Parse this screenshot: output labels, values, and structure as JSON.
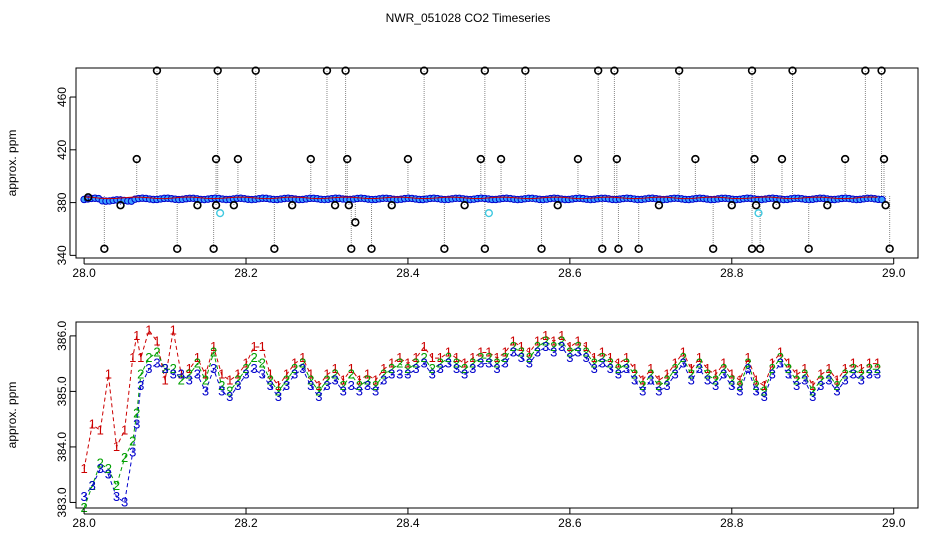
{
  "figure": {
    "title": "NWR_051028  CO2 Timeseries"
  },
  "chart_data": [
    {
      "type": "scatter",
      "ylabel": "approx. ppm",
      "xlim": [
        27.99,
        29.03
      ],
      "ylim": [
        338,
        482
      ],
      "xticks": [
        28.0,
        28.2,
        28.4,
        28.6,
        28.8,
        29.0
      ],
      "xtick_labels": [
        "28.0",
        "28.2",
        "28.4",
        "28.6",
        "28.8",
        "29.0"
      ],
      "yticks": [
        340,
        380,
        420,
        460
      ],
      "ytick_labels": [
        "340",
        "380",
        "420",
        "460"
      ],
      "grid": false,
      "baseline_ppm": 385,
      "low_points_ppm": 372,
      "series_colors": {
        "cluster": "#0000cc",
        "cluster_fill": "#3aa0ff",
        "line": "#cc0000",
        "outlier": "#000000",
        "low": "#40c8e0"
      },
      "outlier_points": [
        {
          "x": 28.005,
          "y": 384
        },
        {
          "x": 28.025,
          "y": 345
        },
        {
          "x": 28.045,
          "y": 378
        },
        {
          "x": 28.065,
          "y": 413
        },
        {
          "x": 28.09,
          "y": 480
        },
        {
          "x": 28.115,
          "y": 345
        },
        {
          "x": 28.14,
          "y": 378
        },
        {
          "x": 28.16,
          "y": 345
        },
        {
          "x": 28.163,
          "y": 378
        },
        {
          "x": 28.163,
          "y": 413
        },
        {
          "x": 28.165,
          "y": 480
        },
        {
          "x": 28.185,
          "y": 378
        },
        {
          "x": 28.19,
          "y": 413
        },
        {
          "x": 28.212,
          "y": 480
        },
        {
          "x": 28.235,
          "y": 345
        },
        {
          "x": 28.257,
          "y": 378
        },
        {
          "x": 28.28,
          "y": 413
        },
        {
          "x": 28.3,
          "y": 480
        },
        {
          "x": 28.31,
          "y": 378
        },
        {
          "x": 28.323,
          "y": 480
        },
        {
          "x": 28.325,
          "y": 413
        },
        {
          "x": 28.327,
          "y": 378
        },
        {
          "x": 28.33,
          "y": 345
        },
        {
          "x": 28.335,
          "y": 365
        },
        {
          "x": 28.355,
          "y": 345
        },
        {
          "x": 28.38,
          "y": 378
        },
        {
          "x": 28.4,
          "y": 413
        },
        {
          "x": 28.42,
          "y": 480
        },
        {
          "x": 28.445,
          "y": 345
        },
        {
          "x": 28.47,
          "y": 378
        },
        {
          "x": 28.49,
          "y": 413
        },
        {
          "x": 28.495,
          "y": 480
        },
        {
          "x": 28.495,
          "y": 345
        },
        {
          "x": 28.515,
          "y": 413
        },
        {
          "x": 28.545,
          "y": 480
        },
        {
          "x": 28.565,
          "y": 345
        },
        {
          "x": 28.585,
          "y": 378
        },
        {
          "x": 28.61,
          "y": 413
        },
        {
          "x": 28.635,
          "y": 480
        },
        {
          "x": 28.64,
          "y": 345
        },
        {
          "x": 28.655,
          "y": 480
        },
        {
          "x": 28.658,
          "y": 413
        },
        {
          "x": 28.66,
          "y": 345
        },
        {
          "x": 28.685,
          "y": 345
        },
        {
          "x": 28.71,
          "y": 378
        },
        {
          "x": 28.735,
          "y": 480
        },
        {
          "x": 28.755,
          "y": 413
        },
        {
          "x": 28.777,
          "y": 345
        },
        {
          "x": 28.8,
          "y": 378
        },
        {
          "x": 28.825,
          "y": 480
        },
        {
          "x": 28.825,
          "y": 345
        },
        {
          "x": 28.828,
          "y": 413
        },
        {
          "x": 28.83,
          "y": 378
        },
        {
          "x": 28.835,
          "y": 345
        },
        {
          "x": 28.855,
          "y": 378
        },
        {
          "x": 28.862,
          "y": 413
        },
        {
          "x": 28.875,
          "y": 480
        },
        {
          "x": 28.895,
          "y": 345
        },
        {
          "x": 28.918,
          "y": 378
        },
        {
          "x": 28.94,
          "y": 413
        },
        {
          "x": 28.965,
          "y": 480
        },
        {
          "x": 28.985,
          "y": 480
        },
        {
          "x": 28.988,
          "y": 413
        },
        {
          "x": 28.99,
          "y": 378
        },
        {
          "x": 28.995,
          "y": 345
        }
      ],
      "low_points": [
        {
          "x": 28.168,
          "y": 372
        },
        {
          "x": 28.5,
          "y": 372
        },
        {
          "x": 28.833,
          "y": 372
        }
      ]
    },
    {
      "type": "line",
      "ylabel": "approx. ppm",
      "xlim": [
        27.99,
        29.03
      ],
      "ylim": [
        382.9,
        386.25
      ],
      "xticks": [
        28.0,
        28.2,
        28.4,
        28.6,
        28.8,
        29.0
      ],
      "xtick_labels": [
        "28.0",
        "28.2",
        "28.4",
        "28.6",
        "28.8",
        "29.0"
      ],
      "yticks": [
        383.0,
        384.0,
        385.0,
        386.0
      ],
      "ytick_labels": [
        "383.0",
        "384.0",
        "385.0",
        "386.0"
      ],
      "grid": false,
      "x": [
        28.0,
        28.01,
        28.02,
        28.03,
        28.04,
        28.05,
        28.06,
        28.065,
        28.07,
        28.08,
        28.09,
        28.1,
        28.11,
        28.12,
        28.13,
        28.14,
        28.15,
        28.16,
        28.17,
        28.18,
        28.19,
        28.2,
        28.21,
        28.22,
        28.23,
        28.24,
        28.25,
        28.26,
        28.27,
        28.28,
        28.29,
        28.3,
        28.31,
        28.32,
        28.33,
        28.34,
        28.35,
        28.36,
        28.37,
        28.38,
        28.39,
        28.4,
        28.41,
        28.42,
        28.43,
        28.44,
        28.45,
        28.46,
        28.47,
        28.48,
        28.49,
        28.5,
        28.51,
        28.52,
        28.53,
        28.54,
        28.55,
        28.56,
        28.57,
        28.58,
        28.59,
        28.6,
        28.61,
        28.62,
        28.63,
        28.64,
        28.65,
        28.66,
        28.67,
        28.68,
        28.69,
        28.7,
        28.71,
        28.72,
        28.73,
        28.74,
        28.75,
        28.76,
        28.77,
        28.78,
        28.79,
        28.8,
        28.81,
        28.82,
        28.83,
        28.84,
        28.85,
        28.86,
        28.87,
        28.88,
        28.89,
        28.9,
        28.91,
        28.92,
        28.93,
        28.94,
        28.95,
        28.96,
        28.97,
        28.98
      ],
      "series": [
        {
          "name": "1",
          "color": "#cc0000",
          "values": [
            383.6,
            384.4,
            384.3,
            385.3,
            384.0,
            384.3,
            385.6,
            386.0,
            385.6,
            386.1,
            385.9,
            385.2,
            386.1,
            385.3,
            385.4,
            385.6,
            385.3,
            385.8,
            385.3,
            385.2,
            385.3,
            385.5,
            385.8,
            385.8,
            385.3,
            385.1,
            385.3,
            385.5,
            385.6,
            385.3,
            385.1,
            385.3,
            385.4,
            385.2,
            385.4,
            385.2,
            385.3,
            385.2,
            385.4,
            385.5,
            385.6,
            385.5,
            385.6,
            385.8,
            385.6,
            385.6,
            385.7,
            385.6,
            385.5,
            385.6,
            385.7,
            385.7,
            385.6,
            385.7,
            385.9,
            385.8,
            385.7,
            385.9,
            386.0,
            385.9,
            386.0,
            385.8,
            385.9,
            385.8,
            385.6,
            385.7,
            385.6,
            385.5,
            385.6,
            385.4,
            385.2,
            385.4,
            385.2,
            385.3,
            385.5,
            385.7,
            385.4,
            385.6,
            385.4,
            385.3,
            385.5,
            385.3,
            385.2,
            385.6,
            385.2,
            385.1,
            385.5,
            385.7,
            385.5,
            385.3,
            385.4,
            385.1,
            385.3,
            385.4,
            385.2,
            385.4,
            385.5,
            385.4,
            385.5,
            385.5
          ]
        },
        {
          "name": "2",
          "color": "#00a000",
          "values": [
            382.9,
            383.3,
            383.7,
            383.6,
            383.3,
            383.8,
            384.1,
            384.6,
            385.3,
            385.6,
            385.7,
            385.4,
            385.4,
            385.2,
            385.3,
            385.5,
            385.2,
            385.7,
            385.1,
            385.0,
            385.2,
            385.4,
            385.6,
            385.5,
            385.2,
            385.0,
            385.2,
            385.4,
            385.5,
            385.2,
            385.0,
            385.2,
            385.3,
            385.1,
            385.3,
            385.1,
            385.2,
            385.1,
            385.3,
            385.4,
            385.5,
            385.4,
            385.5,
            385.6,
            385.4,
            385.5,
            385.6,
            385.5,
            385.4,
            385.5,
            385.6,
            385.6,
            385.5,
            385.6,
            385.8,
            385.7,
            385.6,
            385.8,
            385.9,
            385.8,
            385.9,
            385.7,
            385.8,
            385.7,
            385.5,
            385.6,
            385.5,
            385.4,
            385.5,
            385.3,
            385.1,
            385.3,
            385.1,
            385.2,
            385.4,
            385.6,
            385.3,
            385.5,
            385.3,
            385.2,
            385.4,
            385.2,
            385.1,
            385.5,
            385.1,
            385.0,
            385.4,
            385.6,
            385.4,
            385.2,
            385.3,
            385.0,
            385.2,
            385.3,
            385.1,
            385.3,
            385.4,
            385.3,
            385.4,
            385.4
          ]
        },
        {
          "name": "3",
          "color": "#0000cc",
          "values": [
            383.1,
            383.3,
            383.6,
            383.5,
            383.1,
            383.0,
            383.9,
            384.4,
            385.1,
            385.4,
            385.5,
            385.4,
            385.3,
            385.3,
            385.2,
            385.3,
            385.0,
            385.4,
            385.0,
            384.9,
            385.1,
            385.3,
            385.4,
            385.3,
            385.1,
            384.9,
            385.1,
            385.3,
            385.4,
            385.1,
            384.9,
            385.1,
            385.2,
            385.0,
            385.1,
            385.0,
            385.1,
            385.0,
            385.2,
            385.3,
            385.3,
            385.3,
            385.4,
            385.5,
            385.3,
            385.4,
            385.5,
            385.4,
            385.3,
            385.4,
            385.5,
            385.5,
            385.4,
            385.5,
            385.7,
            385.6,
            385.5,
            385.7,
            385.8,
            385.7,
            385.8,
            385.6,
            385.7,
            385.6,
            385.4,
            385.5,
            385.4,
            385.3,
            385.4,
            385.2,
            385.0,
            385.2,
            385.0,
            385.1,
            385.3,
            385.5,
            385.2,
            385.4,
            385.2,
            385.1,
            385.3,
            385.1,
            385.0,
            385.4,
            385.0,
            384.9,
            385.3,
            385.5,
            385.3,
            385.1,
            385.2,
            384.9,
            385.1,
            385.2,
            385.0,
            385.2,
            385.3,
            385.2,
            385.3,
            385.3
          ]
        }
      ]
    }
  ]
}
